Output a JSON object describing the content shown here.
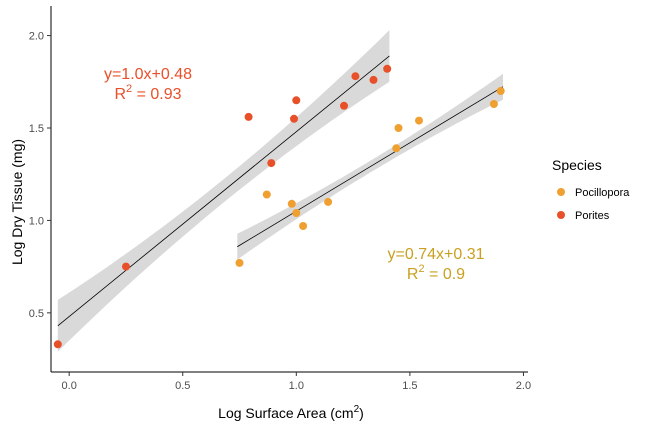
{
  "chart_data": {
    "type": "scatter",
    "title": "",
    "xlabel": "Log Surface Area (cm",
    "xlabel_sup": "2",
    "xlabel_end": ")",
    "ylabel": "Log Dry Tissue (mg)",
    "xlim": [
      -0.08,
      2.02
    ],
    "ylim": [
      0.18,
      2.16
    ],
    "x_ticks": [
      0.0,
      0.5,
      1.0,
      1.5,
      2.0
    ],
    "x_tick_labels": [
      "0.0",
      "0.5",
      "1.0",
      "1.5",
      "2.0"
    ],
    "y_ticks": [
      0.5,
      1.0,
      1.5,
      2.0
    ],
    "y_tick_labels": [
      "0.5",
      "1.0",
      "1.5",
      "2.0"
    ],
    "grid": false,
    "legend": {
      "title": "Species",
      "placement": "right",
      "entries": [
        {
          "label": "Pocillopora",
          "color": "#F0A030"
        },
        {
          "label": "Porites",
          "color": "#E8502A"
        }
      ]
    },
    "series": [
      {
        "name": "Pocillopora",
        "color": "#F0A030",
        "points": [
          {
            "x": 0.75,
            "y": 0.77
          },
          {
            "x": 0.87,
            "y": 1.14
          },
          {
            "x": 0.98,
            "y": 1.09
          },
          {
            "x": 1.0,
            "y": 1.04
          },
          {
            "x": 1.03,
            "y": 0.97
          },
          {
            "x": 1.14,
            "y": 1.1
          },
          {
            "x": 1.44,
            "y": 1.39
          },
          {
            "x": 1.45,
            "y": 1.5
          },
          {
            "x": 1.54,
            "y": 1.54
          },
          {
            "x": 1.87,
            "y": 1.63
          },
          {
            "x": 1.9,
            "y": 1.7
          }
        ],
        "fit": {
          "x_range": [
            0.74,
            1.91
          ],
          "slope": 0.74,
          "intercept": 0.31,
          "band": 0.07
        }
      },
      {
        "name": "Porites",
        "color": "#E8502A",
        "points": [
          {
            "x": -0.05,
            "y": 0.33
          },
          {
            "x": 0.25,
            "y": 0.75
          },
          {
            "x": 0.79,
            "y": 1.56
          },
          {
            "x": 0.89,
            "y": 1.31
          },
          {
            "x": 0.99,
            "y": 1.55
          },
          {
            "x": 1.0,
            "y": 1.65
          },
          {
            "x": 1.21,
            "y": 1.62
          },
          {
            "x": 1.26,
            "y": 1.78
          },
          {
            "x": 1.34,
            "y": 1.76
          },
          {
            "x": 1.4,
            "y": 1.82
          }
        ],
        "fit": {
          "x_range": [
            -0.05,
            1.41
          ],
          "slope": 1.0,
          "intercept": 0.48,
          "band": 0.14
        }
      }
    ],
    "annotations": [
      {
        "series": "Porites",
        "equation": "y=1.0x+0.48",
        "r2_label": "R",
        "r2_sup": "2",
        "r2_value": " = 0.93",
        "color": "#E8502A"
      },
      {
        "series": "Pocillopora",
        "equation": "y=0.74x+0.31",
        "r2_label": "R",
        "r2_sup": "2",
        "r2_value": " = 0.9",
        "color": "#C9A020"
      }
    ]
  }
}
